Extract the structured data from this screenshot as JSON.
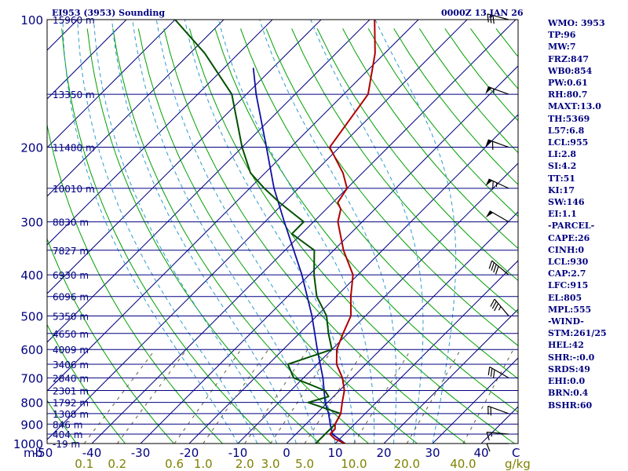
{
  "chart_data": {
    "type": "skew-t",
    "title": "EI953 (3953) Sounding",
    "valid_time": "0000Z 13 JAN 26",
    "pressure_axis_label": "mb",
    "temperature_axis_label": "C",
    "mixing_ratio_axis_label": "g/kg",
    "pressure_ticks": [
      100,
      200,
      300,
      400,
      500,
      600,
      700,
      800,
      900,
      1000
    ],
    "temperature_ticks": [
      -50,
      -40,
      -30,
      -20,
      -10,
      0,
      10,
      20,
      30,
      40
    ],
    "mixing_ratio_labels": [
      "0.1",
      "0.2",
      "0.6",
      "1.0",
      "2.0",
      "3.0",
      "5.0",
      "10.0",
      "20.0",
      "40.0"
    ],
    "height_labels": [
      {
        "p": 100,
        "label": "15960 m"
      },
      {
        "p": 150,
        "label": "13350 m"
      },
      {
        "p": 200,
        "label": "11480 m"
      },
      {
        "p": 250,
        "label": "10010 m"
      },
      {
        "p": 300,
        "label": "8830 m"
      },
      {
        "p": 350,
        "label": "7827 m"
      },
      {
        "p": 400,
        "label": "6930 m"
      },
      {
        "p": 450,
        "label": "6096 m"
      },
      {
        "p": 500,
        "label": "5350 m"
      },
      {
        "p": 550,
        "label": "4650 m"
      },
      {
        "p": 600,
        "label": "4009 m"
      },
      {
        "p": 650,
        "label": "3406 m"
      },
      {
        "p": 700,
        "label": "2840 m"
      },
      {
        "p": 750,
        "label": "2301 m"
      },
      {
        "p": 800,
        "label": "1792 m"
      },
      {
        "p": 850,
        "label": "1308 m"
      },
      {
        "p": 900,
        "label": "846 m"
      },
      {
        "p": 950,
        "label": "404 m"
      },
      {
        "p": 1000,
        "label": "-19 m"
      }
    ],
    "temperature_profile": [
      [
        1000,
        12.0
      ],
      [
        975,
        9.0
      ],
      [
        950,
        7.0
      ],
      [
        925,
        7.0
      ],
      [
        900,
        6.0
      ],
      [
        850,
        5.0
      ],
      [
        800,
        3.0
      ],
      [
        750,
        1.0
      ],
      [
        700,
        -2.0
      ],
      [
        650,
        -6.0
      ],
      [
        600,
        -9.0
      ],
      [
        550,
        -11.0
      ],
      [
        500,
        -13.0
      ],
      [
        450,
        -17.0
      ],
      [
        400,
        -21.0
      ],
      [
        350,
        -28.0
      ],
      [
        300,
        -35.0
      ],
      [
        280,
        -37.0
      ],
      [
        270,
        -39.0
      ],
      [
        250,
        -40.0
      ],
      [
        230,
        -44.0
      ],
      [
        200,
        -52.0
      ],
      [
        150,
        -55.0
      ],
      [
        120,
        -62.0
      ],
      [
        100,
        -69.0
      ]
    ],
    "dewpoint_profile": [
      [
        1000,
        6.0
      ],
      [
        975,
        6.0
      ],
      [
        950,
        6.0
      ],
      [
        900,
        6.0
      ],
      [
        850,
        5.0
      ],
      [
        800,
        -4.0
      ],
      [
        775,
        -1.0
      ],
      [
        750,
        -3.0
      ],
      [
        700,
        -12.0
      ],
      [
        650,
        -16.0
      ],
      [
        600,
        -10.0
      ],
      [
        550,
        -14.0
      ],
      [
        500,
        -18.0
      ],
      [
        450,
        -24.0
      ],
      [
        400,
        -29.0
      ],
      [
        350,
        -34.0
      ],
      [
        320,
        -42.0
      ],
      [
        300,
        -42.0
      ],
      [
        270,
        -51.0
      ],
      [
        250,
        -57.0
      ],
      [
        230,
        -63.0
      ],
      [
        200,
        -70.0
      ],
      [
        150,
        -83.0
      ],
      [
        120,
        -97.0
      ],
      [
        100,
        -110.0
      ]
    ],
    "parcel_path": [
      [
        1000,
        12.0
      ],
      [
        950,
        7.5
      ],
      [
        930,
        6.5
      ],
      [
        900,
        5.0
      ],
      [
        850,
        2.5
      ],
      [
        800,
        -0.5
      ],
      [
        700,
        -6.0
      ],
      [
        600,
        -13.0
      ],
      [
        500,
        -21.0
      ],
      [
        400,
        -31.5
      ],
      [
        300,
        -46.0
      ],
      [
        250,
        -55.0
      ],
      [
        200,
        -65.0
      ],
      [
        150,
        -78.0
      ],
      [
        130,
        -84.0
      ]
    ],
    "wind_barbs": [
      {
        "p": 1000,
        "dir": 270,
        "speed_kt": 10
      },
      {
        "p": 950,
        "dir": 275,
        "speed_kt": 15
      },
      {
        "p": 850,
        "dir": 290,
        "speed_kt": 20
      },
      {
        "p": 700,
        "dir": 300,
        "speed_kt": 30
      },
      {
        "p": 500,
        "dir": 320,
        "speed_kt": 35
      },
      {
        "p": 400,
        "dir": 310,
        "speed_kt": 40
      },
      {
        "p": 300,
        "dir": 300,
        "speed_kt": 50
      },
      {
        "p": 250,
        "dir": 295,
        "speed_kt": 65
      },
      {
        "p": 200,
        "dir": 290,
        "speed_kt": 60
      },
      {
        "p": 150,
        "dir": 290,
        "speed_kt": 55
      },
      {
        "p": 100,
        "dir": 285,
        "speed_kt": 30
      }
    ],
    "colors": {
      "border": "#000000",
      "isobar": "#000080",
      "isotherm": "#000080",
      "dry_adiabat": "#00A000",
      "moist_adiabat": "#2E9ACD",
      "mixing_ratio": "#606040",
      "temperature": "#B00000",
      "dewpoint": "#005000",
      "parcel": "#1010A0",
      "wind_barb": "#000000",
      "axis_labels": "#000080",
      "mixing_labels": "#808000"
    }
  },
  "indices": [
    "WMO: 3953",
    "TP:96",
    "MW:7",
    "FRZ:847",
    "WB0:854",
    "PW:0.61",
    "RH:80.7",
    "MAXT:13.0",
    "TH:5369",
    "L57:6.8",
    "LCL:955",
    "LI:2.8",
    "SI:4.2",
    "TT:51",
    "KI:17",
    "SW:146",
    "EI:1.1",
    "-PARCEL-",
    "CAPE:26",
    "CINH:0",
    "LCL:930",
    "CAP:2.7",
    "LFC:915",
    "EL:805",
    "MPL:555",
    "-WIND-",
    "STM:261/25",
    "HEL:42",
    "SHR:-:0.0",
    "SRDS:49",
    "EHI:0.0",
    "BRN:0.4",
    "BSHR:60"
  ]
}
